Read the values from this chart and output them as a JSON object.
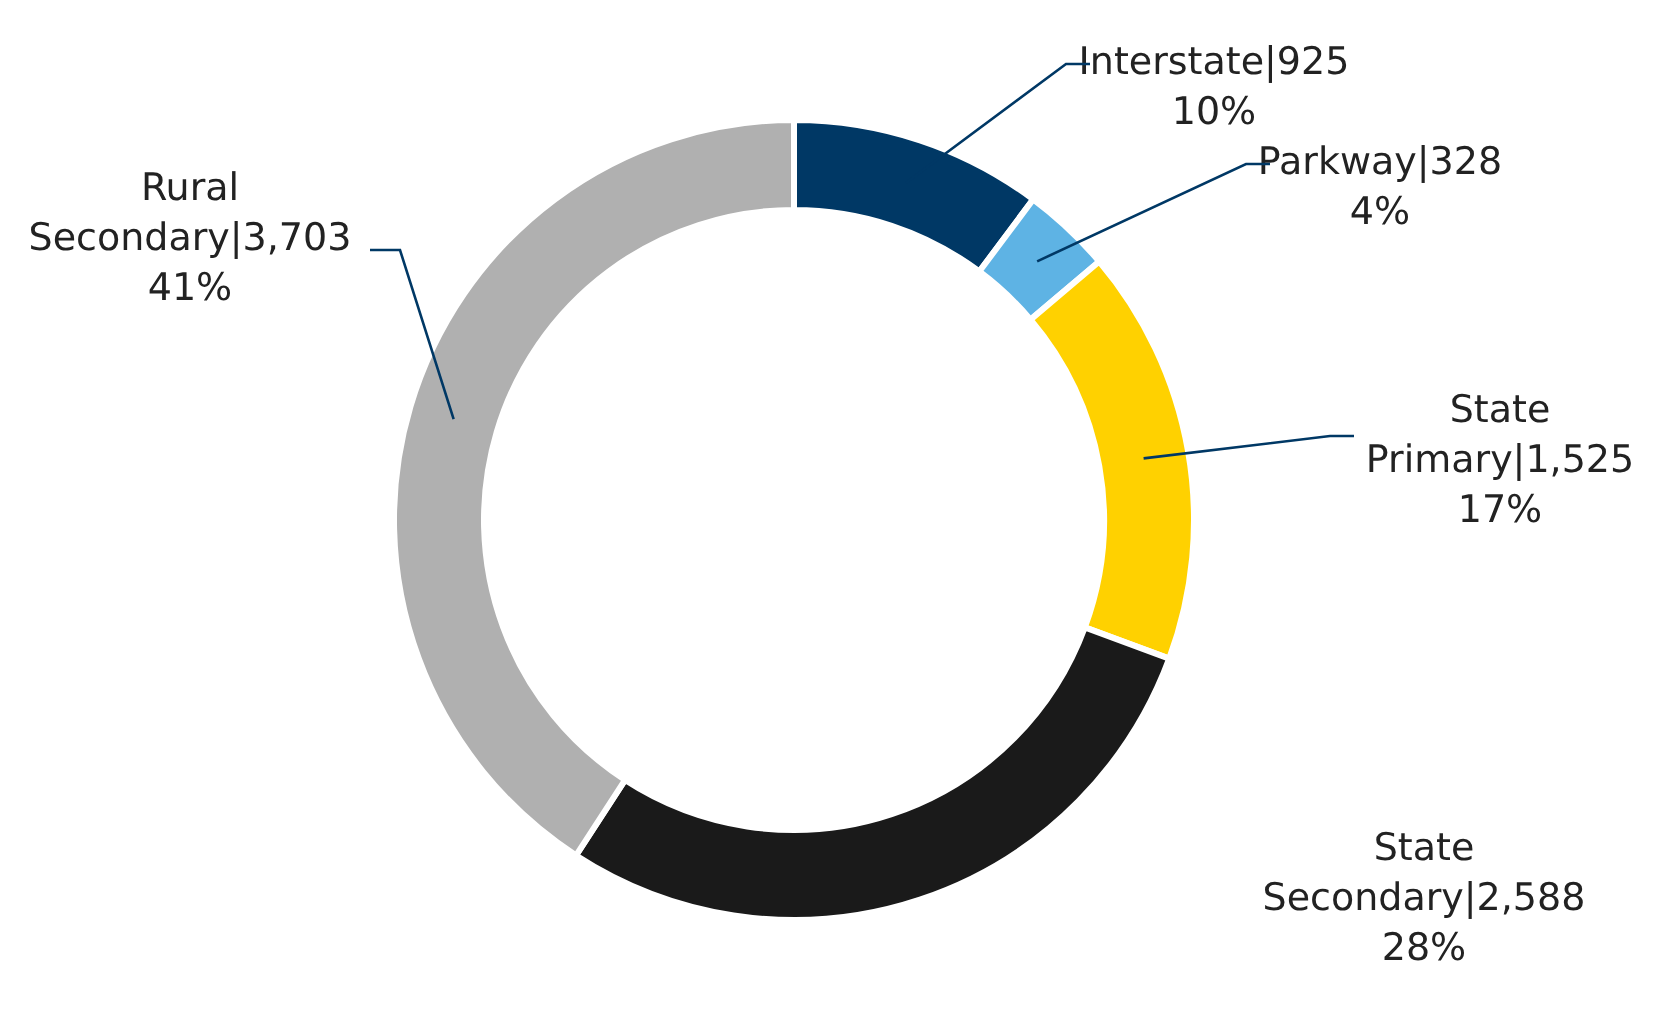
{
  "chart_data": {
    "type": "donut",
    "categories": [
      "Interstate",
      "Parkway",
      "State Primary",
      "State Secondary",
      "Rural Secondary"
    ],
    "values": [
      925,
      328,
      1525,
      2588,
      3703
    ],
    "value_labels": [
      "|925\n10%",
      "|328\n4%",
      "|1,525\n17%",
      "|2,588\n28%",
      "|3,703\n41%"
    ],
    "colors": [
      "#003865",
      "#5eb3e4",
      "#ffd100",
      "#1a1a1a",
      "#b0b0b0"
    ]
  }
}
